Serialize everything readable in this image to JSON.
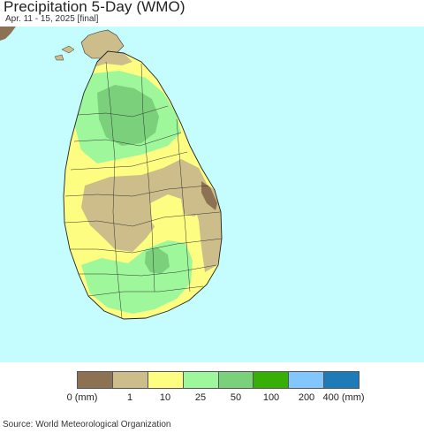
{
  "header": {
    "title": "Precipitation 5-Day (WMO)",
    "subtitle": "Apr. 11 - 15, 2025 [final]"
  },
  "map": {
    "region": "Sri Lanka",
    "ocean_color": "#c5fdff",
    "land_outside_color": "#8c7152"
  },
  "legend": {
    "colors": [
      "#8c7152",
      "#cdbd8a",
      "#fdfd82",
      "#9ef79a",
      "#7bd17b",
      "#36b007",
      "#82c6fd",
      "#1f7ab9"
    ],
    "labels": [
      "0 (mm)",
      "1",
      "10",
      "25",
      "50",
      "100",
      "200",
      "400 (mm)"
    ]
  },
  "footer": {
    "source": "Source: World Meteorological Organization"
  }
}
